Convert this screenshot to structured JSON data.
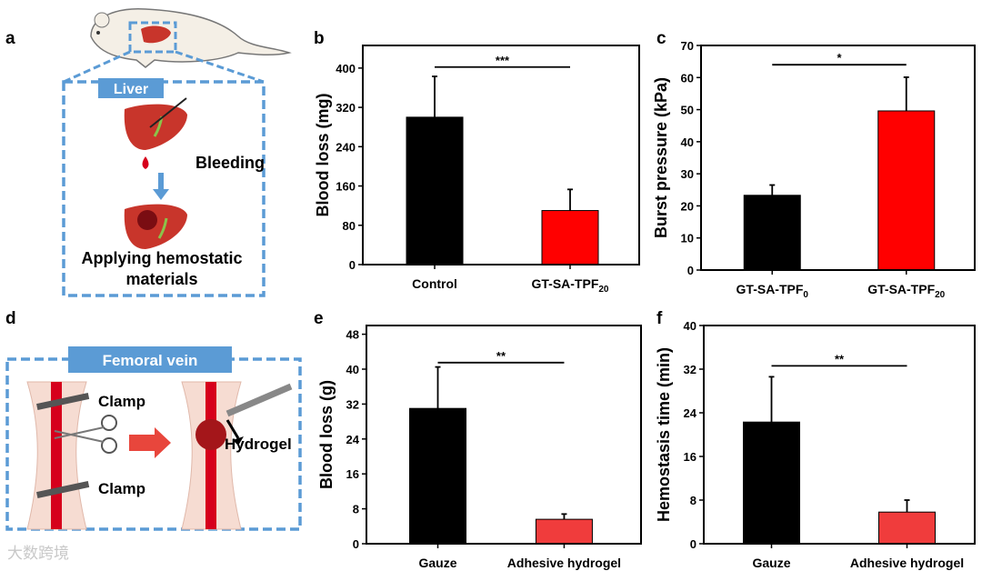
{
  "panels": {
    "a": {
      "letter": "a",
      "organ_label": "Liver",
      "step1": "Bleeding",
      "step2_line1": "Applying hemostatic",
      "step2_line2": "materials"
    },
    "d": {
      "letter": "d",
      "vessel_label": "Femoral vein",
      "clamp_top": "Clamp",
      "clamp_bottom": "Clamp",
      "hydrogel": "Hydrogel"
    },
    "watermark": "大数跨境"
  },
  "colors": {
    "accent_blue": "#5b9bd5",
    "bar_black": "#000000",
    "bar_red": "#ff0000",
    "bar_red_light": "#f03c3c",
    "blood": "#d6001c",
    "liver": "#c8352b"
  },
  "chart_data": [
    {
      "letter": "b",
      "type": "bar",
      "ylabel": "Blood loss (mg)",
      "ylim": [
        0,
        446
      ],
      "yticks": [
        0,
        80,
        160,
        240,
        320,
        400
      ],
      "categories": [
        {
          "main": "Control",
          "sub": ""
        },
        {
          "main": "GT-SA-TPF",
          "sub": "20"
        }
      ],
      "values": [
        300,
        110
      ],
      "errors": [
        83,
        43
      ],
      "colors": [
        "#000000",
        "#ff0000"
      ],
      "significance": {
        "label": "***",
        "y": 402
      }
    },
    {
      "letter": "c",
      "type": "bar",
      "ylabel": "Burst pressure (kPa)",
      "ylim": [
        0,
        70
      ],
      "yticks": [
        0,
        10,
        20,
        30,
        40,
        50,
        60,
        70
      ],
      "categories": [
        {
          "main": "GT-SA-TPF",
          "sub": "0"
        },
        {
          "main": "GT-SA-TPF",
          "sub": "20"
        }
      ],
      "values": [
        23.3,
        49.6
      ],
      "errors": [
        3.2,
        10.5
      ],
      "colors": [
        "#000000",
        "#ff0000"
      ],
      "significance": {
        "label": "*",
        "y": 64
      }
    },
    {
      "letter": "e",
      "type": "bar",
      "ylabel": "Blood loss (g)",
      "ylim": [
        0,
        50
      ],
      "yticks": [
        0,
        8,
        16,
        24,
        32,
        40,
        48
      ],
      "categories": [
        {
          "main": "Gauze",
          "sub": ""
        },
        {
          "main": "Adhesive hydrogel",
          "sub": ""
        }
      ],
      "values": [
        31,
        5.6
      ],
      "errors": [
        9.5,
        1.2
      ],
      "colors": [
        "#000000",
        "#f03c3c"
      ],
      "significance": {
        "label": "**",
        "y": 41.5
      }
    },
    {
      "letter": "f",
      "type": "bar",
      "ylabel": "Hemostasis time (min)",
      "ylim": [
        0,
        40
      ],
      "yticks": [
        0,
        8,
        16,
        24,
        32,
        40
      ],
      "categories": [
        {
          "main": "Gauze",
          "sub": ""
        },
        {
          "main": "Adhesive hydrogel",
          "sub": ""
        }
      ],
      "values": [
        22.3,
        5.8
      ],
      "errors": [
        8.3,
        2.2
      ],
      "colors": [
        "#000000",
        "#f03c3c"
      ],
      "significance": {
        "label": "**",
        "y": 32.6
      }
    }
  ]
}
